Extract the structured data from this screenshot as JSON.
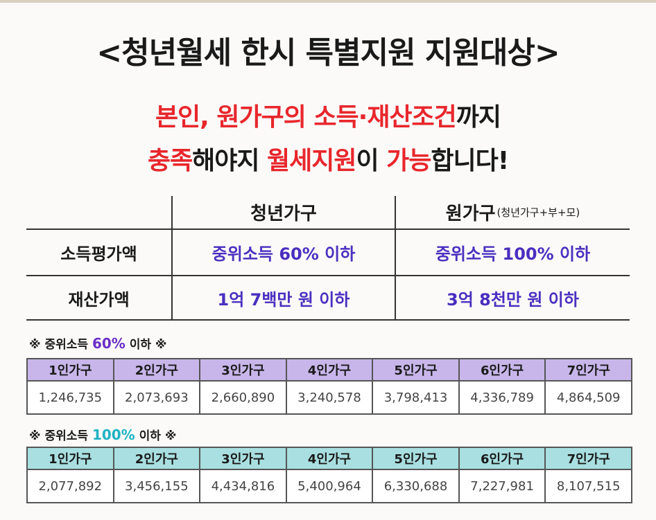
{
  "header": {
    "title": "<청년월세 한시 특별지원 지원대상>",
    "lines": [
      [
        {
          "text": "본인, 원가구의 소득·재산조건",
          "highlight": true
        },
        {
          "text": "까지",
          "highlight": false
        }
      ],
      [
        {
          "text": "충족",
          "highlight": true
        },
        {
          "text": "해야지 ",
          "highlight": false
        },
        {
          "text": "월세지원",
          "highlight": true
        },
        {
          "text": "이 ",
          "highlight": false
        },
        {
          "text": "가능",
          "highlight": true
        },
        {
          "text": "합니다!",
          "highlight": false
        }
      ]
    ]
  },
  "criteria_table": {
    "columns": [
      "청년가구",
      "원가구"
    ],
    "column_note": "(청년가구+부+모)",
    "rows": [
      [
        "소득평가액",
        "중위소득 60% 이하",
        "중위소득 100% 이하"
      ],
      [
        "재산가액",
        "1억 7백만 원 이하",
        "3억 8천만 원 이하"
      ]
    ]
  },
  "income_tables": [
    {
      "note": [
        "※ 중위소득 ",
        "60%",
        " 이하 ※"
      ],
      "accent": "#6a2fc7",
      "header_color": "#c8b6ea",
      "columns": [
        "1인가구",
        "2인가구",
        "3인가구",
        "4인가구",
        "5인가구",
        "6인가구",
        "7인가구"
      ],
      "values": [
        "1,246,735",
        "2,073,693",
        "2,660,890",
        "3,240,578",
        "3,798,413",
        "4,336,789",
        "4,864,509"
      ]
    },
    {
      "note": [
        "※ 중위소득 ",
        "100%",
        " 이하 ※"
      ],
      "accent": "#1fb3c4",
      "header_color": "#a9dfe0",
      "columns": [
        "1인가구",
        "2인가구",
        "3인가구",
        "4인가구",
        "5인가구",
        "6인가구",
        "7인가구"
      ],
      "values": [
        "2,077,892",
        "3,456,155",
        "4,434,816",
        "5,400,964",
        "6,330,688",
        "7,227,981",
        "8,107,515"
      ]
    }
  ]
}
